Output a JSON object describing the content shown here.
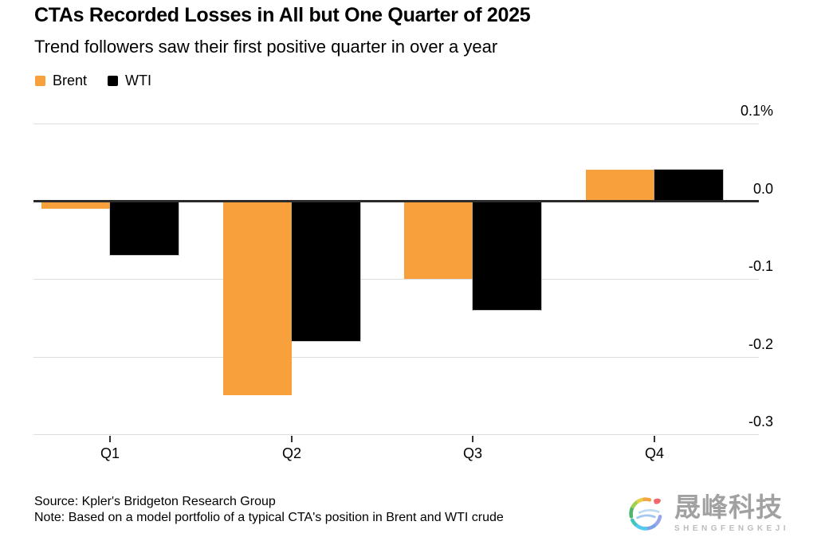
{
  "chart_data": {
    "type": "bar",
    "title": "CTAs Recorded Losses in All but One Quarter of 2025",
    "subtitle": "Trend followers saw their first positive quarter in over a year",
    "categories": [
      "Q1",
      "Q2",
      "Q3",
      "Q4"
    ],
    "series": [
      {
        "name": "Brent",
        "color": "#F8A13C",
        "values": [
          -0.01,
          -0.25,
          -0.1,
          0.04
        ]
      },
      {
        "name": "WTI",
        "color": "#000000",
        "values": [
          -0.07,
          -0.18,
          -0.14,
          0.04
        ]
      }
    ],
    "y_ticks": [
      {
        "label": "0.1%",
        "value": 0.1
      },
      {
        "label": "0.0",
        "value": 0.0
      },
      {
        "label": "-0.1",
        "value": -0.1
      },
      {
        "label": "-0.2",
        "value": -0.2
      },
      {
        "label": "-0.3",
        "value": -0.3
      }
    ],
    "ylim": [
      -0.3,
      0.1
    ],
    "unit": "%",
    "grid": true,
    "legend_position": "top-left",
    "xlabel": "",
    "ylabel": ""
  },
  "footer": {
    "source": "Source: Kpler's Bridgeton Research Group",
    "note": "Note: Based on a model portfolio of a typical CTA's position in Brent and WTI crude"
  },
  "watermark": {
    "name_zh": "晟峰科技",
    "name_en": "SHENGFENGKEJI"
  },
  "colors": {
    "grid": "#dedede",
    "zero_line": "#2b2b2b",
    "text": "#000000"
  }
}
